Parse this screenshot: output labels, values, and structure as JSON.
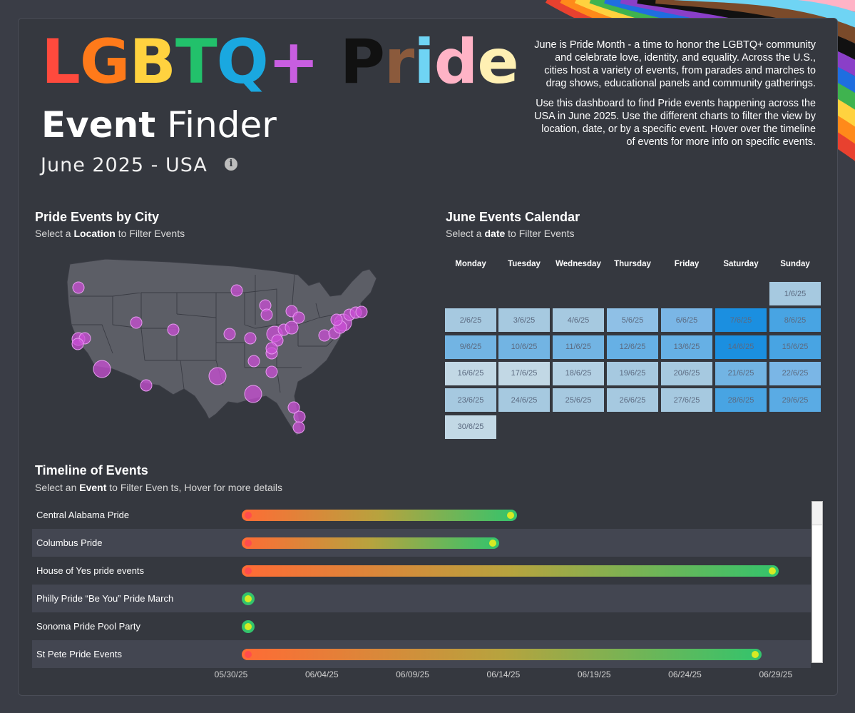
{
  "header": {
    "title_letters": [
      {
        "ch": "L",
        "color": "#ff4a3d"
      },
      {
        "ch": "G",
        "color": "#ff7a1a"
      },
      {
        "ch": "B",
        "color": "#ffd23f"
      },
      {
        "ch": "T",
        "color": "#22c16b"
      },
      {
        "ch": "Q",
        "color": "#1aa8e0"
      },
      {
        "ch": "+",
        "color": "#c85ee0"
      },
      {
        "ch": " ",
        "color": "#ffffff"
      },
      {
        "ch": "P",
        "color": "#111111"
      },
      {
        "ch": "r",
        "color": "#8b5a3c"
      },
      {
        "ch": "i",
        "color": "#6fd4f4"
      },
      {
        "ch": "d",
        "color": "#ffb3c6"
      },
      {
        "ch": "e",
        "color": "#fff0b3"
      }
    ],
    "subtitle_bold": "Event",
    "subtitle_light": "Finder",
    "date_line": "June 2025 - USA",
    "info_icon": "i",
    "intro_p1": "June is Pride Month - a time to honor the LGBTQ+ community and celebrate love, identity, and equality. Across the U.S., cities host a  variety of events, from parades and marches to  drag shows, educational panels and community gatherings.",
    "intro_p2": "Use this dashboard to find Pride events happening across the USA in June 2025. Use the different charts to filter the view by location, date, or by a specific event. Hover over the timeline of events for more info on specific events."
  },
  "map_section": {
    "title": "Pride Events by City",
    "sub_pre": "Select a ",
    "sub_bold": "Location",
    "sub_post": " to Filter Events",
    "marker_color": "#c94fd6"
  },
  "calendar": {
    "title": "June Events Calendar",
    "sub_pre": "Select a ",
    "sub_bold": "date",
    "sub_post": " to Filter Events",
    "weekdays": [
      "Monday",
      "Tuesday",
      "Wednesday",
      "Thursday",
      "Friday",
      "Saturday",
      "Sunday"
    ],
    "weeks": [
      [
        null,
        null,
        null,
        null,
        null,
        null,
        {
          "label": "1/6/25",
          "color": "#a6c9e0"
        }
      ],
      [
        {
          "label": "2/6/25",
          "color": "#a6c9e0"
        },
        {
          "label": "3/6/25",
          "color": "#a6c9e0"
        },
        {
          "label": "4/6/25",
          "color": "#a6c9e0"
        },
        {
          "label": "5/6/25",
          "color": "#8fc0e6"
        },
        {
          "label": "6/6/25",
          "color": "#7ab6e6"
        },
        {
          "label": "7/6/25",
          "color": "#1b8fe0"
        },
        {
          "label": "8/6/25",
          "color": "#48a4e3"
        }
      ],
      [
        {
          "label": "9/6/25",
          "color": "#72b4e3"
        },
        {
          "label": "10/6/25",
          "color": "#72b4e3"
        },
        {
          "label": "11/6/25",
          "color": "#72b4e3"
        },
        {
          "label": "12/6/25",
          "color": "#66b0e5"
        },
        {
          "label": "13/6/25",
          "color": "#66b0e5"
        },
        {
          "label": "14/6/25",
          "color": "#1b8fe0"
        },
        {
          "label": "15/6/25",
          "color": "#48a4e3"
        }
      ],
      [
        {
          "label": "16/6/25",
          "color": "#c2d8e5"
        },
        {
          "label": "17/6/25",
          "color": "#c2d8e5"
        },
        {
          "label": "18/6/25",
          "color": "#b3d0e3"
        },
        {
          "label": "19/6/25",
          "color": "#a6c9e0"
        },
        {
          "label": "20/6/25",
          "color": "#a6c9e0"
        },
        {
          "label": "21/6/25",
          "color": "#72b4e3"
        },
        {
          "label": "22/6/25",
          "color": "#7ab6e6"
        }
      ],
      [
        {
          "label": "23/6/25",
          "color": "#a6c9e0"
        },
        {
          "label": "24/6/25",
          "color": "#a6c9e0"
        },
        {
          "label": "25/6/25",
          "color": "#a6c9e0"
        },
        {
          "label": "26/6/25",
          "color": "#a6c9e0"
        },
        {
          "label": "27/6/25",
          "color": "#a6c9e0"
        },
        {
          "label": "28/6/25",
          "color": "#48a4e3"
        },
        {
          "label": "29/6/25",
          "color": "#5aabe4"
        }
      ],
      [
        {
          "label": "30/6/25",
          "color": "#c2d8e5"
        },
        null,
        null,
        null,
        null,
        null,
        null
      ]
    ]
  },
  "timeline": {
    "title": "Timeline of Events",
    "sub_pre": "Select an ",
    "sub_bold": "Event",
    "sub_post": " to Filter Even ts, Hover for more details",
    "axis_start": "2025-05-30",
    "axis_ticks": [
      "05/30/25",
      "06/04/25",
      "06/09/25",
      "06/14/25",
      "06/19/25",
      "06/24/25",
      "06/29/25"
    ],
    "events": [
      {
        "name": "Central Alabama Pride",
        "start": "2025-05-30",
        "end": "2025-06-14"
      },
      {
        "name": "Columbus Pride",
        "start": "2025-05-30",
        "end": "2025-06-13"
      },
      {
        "name": "House of Yes pride events",
        "start": "2025-05-30",
        "end": "2025-06-29"
      },
      {
        "name": "Philly Pride “Be You” Pride March",
        "start": "2025-05-30",
        "end": "2025-05-30"
      },
      {
        "name": "Sonoma Pride Pool Party",
        "start": "2025-05-30",
        "end": "2025-05-30"
      },
      {
        "name": "St Pete Pride Events",
        "start": "2025-05-30",
        "end": "2025-06-28"
      }
    ]
  }
}
